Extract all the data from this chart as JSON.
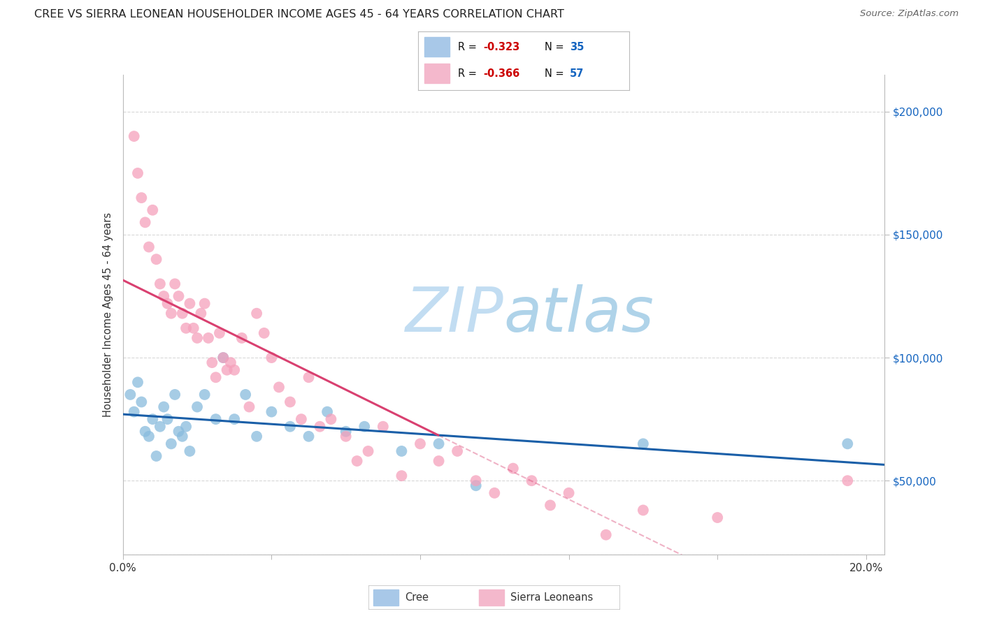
{
  "title": "CREE VS SIERRA LEONEAN HOUSEHOLDER INCOME AGES 45 - 64 YEARS CORRELATION CHART",
  "source": "Source: ZipAtlas.com",
  "ylabel": "Householder Income Ages 45 - 64 years",
  "xlim": [
    0.0,
    0.205
  ],
  "ylim": [
    20000,
    215000
  ],
  "ytick_positions": [
    50000,
    100000,
    150000,
    200000
  ],
  "ytick_labels_right": [
    "$50,000",
    "$100,000",
    "$150,000",
    "$200,000"
  ],
  "background_color": "#ffffff",
  "grid_color": "#d8d8d8",
  "cree_color": "#88bbdd",
  "sierra_color": "#f5a0bb",
  "cree_line_color": "#1a5fa8",
  "sierra_line_color": "#d94070",
  "cree_R": -0.323,
  "cree_N": 35,
  "sierra_R": -0.366,
  "sierra_N": 57,
  "legend_R_color": "#cc0000",
  "legend_N_color": "#1565c0",
  "cree_x": [
    0.002,
    0.003,
    0.004,
    0.005,
    0.006,
    0.007,
    0.008,
    0.009,
    0.01,
    0.011,
    0.012,
    0.013,
    0.014,
    0.015,
    0.016,
    0.017,
    0.018,
    0.02,
    0.022,
    0.025,
    0.027,
    0.03,
    0.033,
    0.036,
    0.04,
    0.045,
    0.05,
    0.055,
    0.06,
    0.065,
    0.075,
    0.085,
    0.095,
    0.14,
    0.195
  ],
  "cree_y": [
    85000,
    78000,
    90000,
    82000,
    70000,
    68000,
    75000,
    60000,
    72000,
    80000,
    75000,
    65000,
    85000,
    70000,
    68000,
    72000,
    62000,
    80000,
    85000,
    75000,
    100000,
    75000,
    85000,
    68000,
    78000,
    72000,
    68000,
    78000,
    70000,
    72000,
    62000,
    65000,
    48000,
    65000,
    65000
  ],
  "sierra_x": [
    0.003,
    0.004,
    0.005,
    0.006,
    0.007,
    0.008,
    0.009,
    0.01,
    0.011,
    0.012,
    0.013,
    0.014,
    0.015,
    0.016,
    0.017,
    0.018,
    0.019,
    0.02,
    0.021,
    0.022,
    0.023,
    0.024,
    0.025,
    0.026,
    0.027,
    0.028,
    0.029,
    0.03,
    0.032,
    0.034,
    0.036,
    0.038,
    0.04,
    0.042,
    0.045,
    0.048,
    0.05,
    0.053,
    0.056,
    0.06,
    0.063,
    0.066,
    0.07,
    0.075,
    0.08,
    0.085,
    0.09,
    0.095,
    0.1,
    0.105,
    0.11,
    0.115,
    0.12,
    0.13,
    0.14,
    0.16,
    0.195
  ],
  "sierra_y": [
    190000,
    175000,
    165000,
    155000,
    145000,
    160000,
    140000,
    130000,
    125000,
    122000,
    118000,
    130000,
    125000,
    118000,
    112000,
    122000,
    112000,
    108000,
    118000,
    122000,
    108000,
    98000,
    92000,
    110000,
    100000,
    95000,
    98000,
    95000,
    108000,
    80000,
    118000,
    110000,
    100000,
    88000,
    82000,
    75000,
    92000,
    72000,
    75000,
    68000,
    58000,
    62000,
    72000,
    52000,
    65000,
    58000,
    62000,
    50000,
    45000,
    55000,
    50000,
    40000,
    45000,
    28000,
    38000,
    35000,
    50000
  ]
}
